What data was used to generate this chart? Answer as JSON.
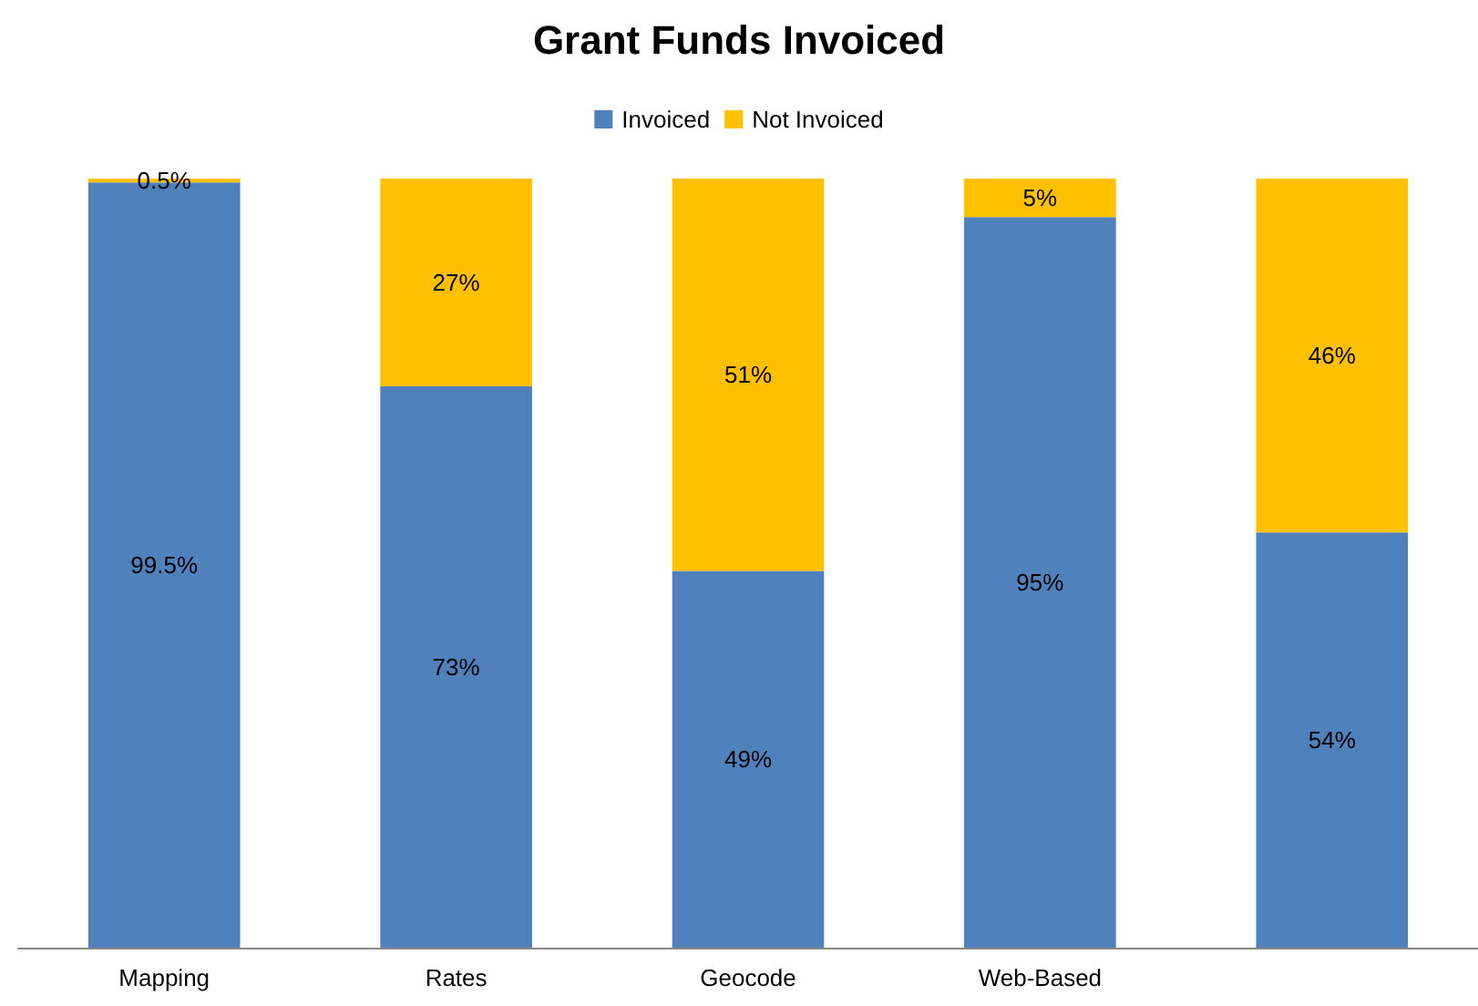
{
  "chart_data": {
    "type": "bar",
    "title": "Grant Funds Invoiced",
    "categories": [
      "Mapping",
      "Rates",
      "Geocode",
      "Web-Based",
      null
    ],
    "stacked": true,
    "legend": "top",
    "series": [
      {
        "name": "Invoiced",
        "color": "#4f81bd",
        "values": [
          99.5,
          73,
          49,
          95,
          54
        ],
        "value_labels": [
          "99.5%",
          "73%",
          "49%",
          "95%",
          "54%"
        ]
      },
      {
        "name": "Not Invoiced",
        "color": "#ffc000",
        "values": [
          0.5,
          27,
          51,
          5,
          46
        ],
        "value_labels": [
          "0.5%",
          "27%",
          "51%",
          "5%",
          "46%"
        ]
      }
    ]
  }
}
